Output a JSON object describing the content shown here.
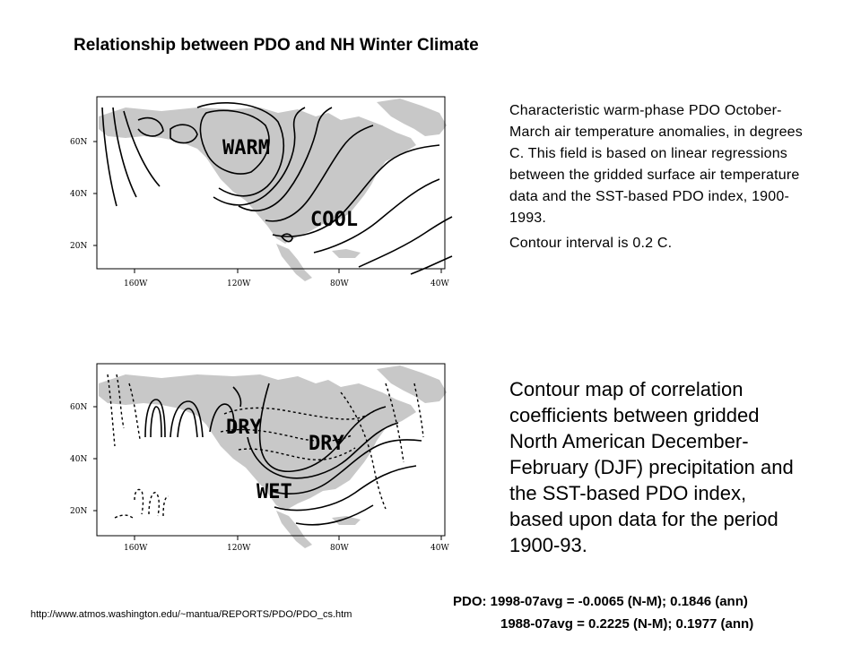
{
  "title": "Relationship between PDO and NH Winter Climate",
  "map_temperature": {
    "y_ticks": [
      "60N",
      "40N",
      "20N"
    ],
    "x_ticks": [
      "160W",
      "120W",
      "80W",
      "40W"
    ],
    "labels": [
      "WARM",
      "COOL"
    ]
  },
  "map_precipitation": {
    "y_ticks": [
      "60N",
      "40N",
      "20N"
    ],
    "x_ticks": [
      "160W",
      "120W",
      "80W",
      "40W"
    ],
    "labels": [
      "DRY",
      "DRY",
      "WET"
    ]
  },
  "description_temperature": {
    "text": "Characteristic warm-phase PDO October-March air temperature anomalies, in degrees C. This field is based on linear regressions between the gridded surface air temperature data and the SST-based PDO index, 1900-1993.",
    "contour_note": "Contour interval is 0.2 C."
  },
  "description_precipitation": "Contour map of correlation coefficients between gridded North American December-February (DJF) precipitation and the SST-based PDO index, based upon data for the period 1900-93.",
  "source_url": "http://www.atmos.washington.edu/~mantua/REPORTS/PDO/PDO_cs.htm",
  "pdo_stats": {
    "line1": "PDO: 1998-07avg = -0.0065 (N-M); 0.1846 (ann)",
    "line2": "1988-07avg = 0.2225 (N-M); 0.1977 (ann)"
  },
  "colors": {
    "land": "#c8c8c8",
    "contour": "#000000",
    "background": "#ffffff"
  }
}
